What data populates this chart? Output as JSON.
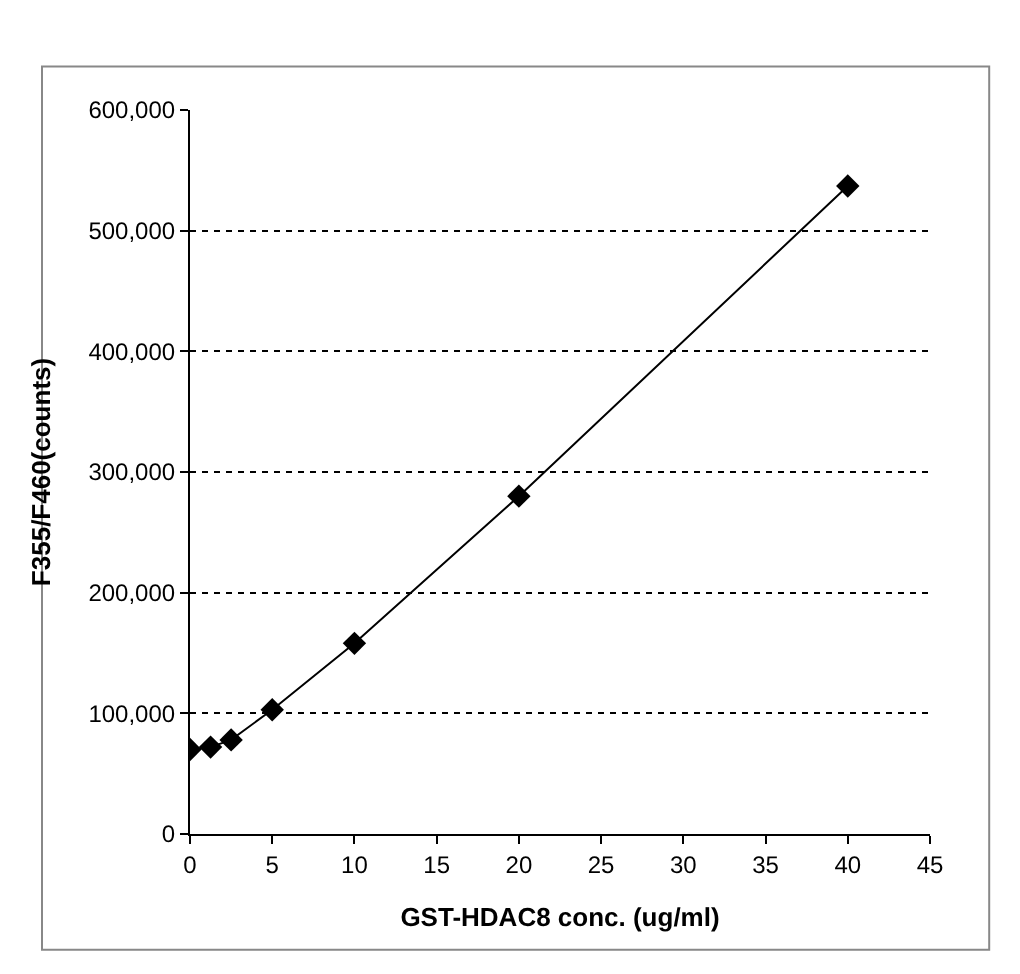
{
  "chart_data": {
    "type": "line",
    "xlabel": "GST-HDAC8 conc. (ug/ml)",
    "ylabel": "F355/F460(counts)",
    "x": [
      0,
      1.25,
      2.5,
      5,
      10,
      20,
      40
    ],
    "series": [
      {
        "color": "#000000",
        "values": [
          70000,
          72000,
          78000,
          103000,
          158000,
          280000,
          537000
        ]
      }
    ],
    "xlim": [
      0,
      45
    ],
    "xticks": [
      0,
      5,
      10,
      15,
      20,
      25,
      30,
      35,
      40,
      45
    ],
    "ylim": [
      0,
      600000
    ],
    "yticks": [
      {
        "value": 0,
        "label": "0"
      },
      {
        "value": 100000,
        "label": "100,000"
      },
      {
        "value": 200000,
        "label": "200,000"
      },
      {
        "value": 300000,
        "label": "300,000"
      },
      {
        "value": 400000,
        "label": "400,000"
      },
      {
        "value": 500000,
        "label": "500,000"
      },
      {
        "value": 600000,
        "label": "600,000"
      }
    ],
    "grid": "y",
    "marker": "diamond",
    "line_style": "solid",
    "legend": false
  }
}
